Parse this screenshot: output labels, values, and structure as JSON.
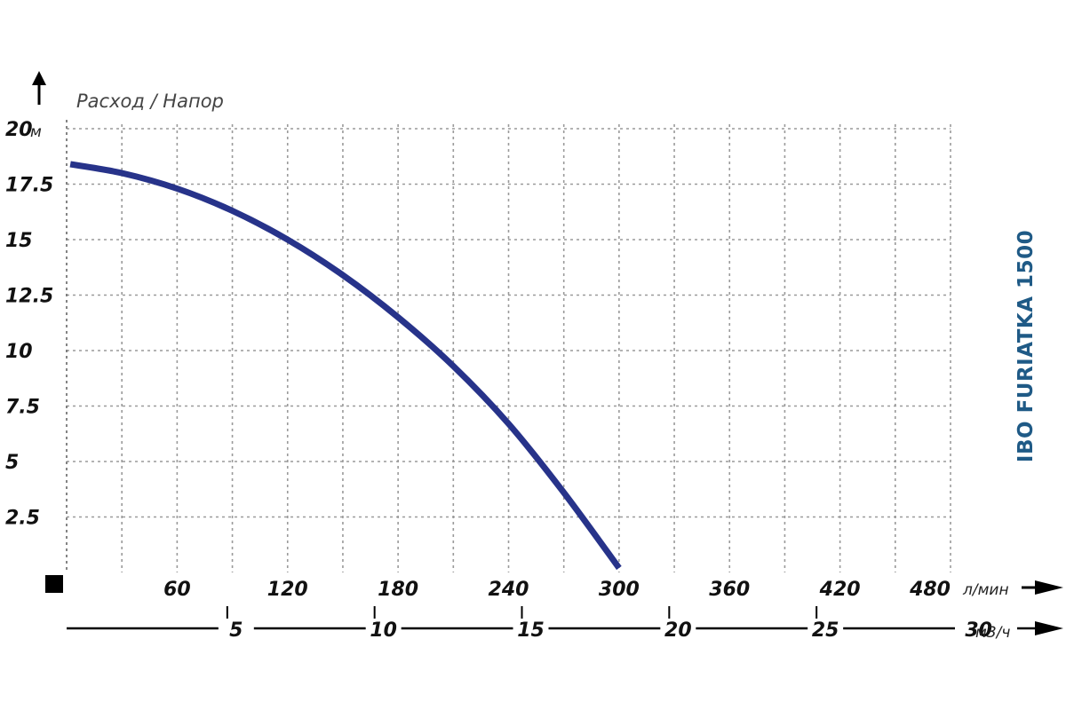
{
  "chart_data": {
    "type": "line",
    "ylabel": "Расход / Напор",
    "model_label": "IBO FURIATKA 1500",
    "y_unit": "м",
    "x_unit": "л/мин",
    "x2_unit": "м3/ч",
    "ylim": [
      0,
      20
    ],
    "xlim": [
      0,
      480
    ],
    "y_ticks": [
      {
        "value": 20,
        "label": "20"
      },
      {
        "value": 17.5,
        "label": "17.5"
      },
      {
        "value": 15,
        "label": "15"
      },
      {
        "value": 12.5,
        "label": "12.5"
      },
      {
        "value": 10,
        "label": "10"
      },
      {
        "value": 7.5,
        "label": "7.5"
      },
      {
        "value": 5,
        "label": "5"
      },
      {
        "value": 2.5,
        "label": "2.5"
      }
    ],
    "x_ticks": [
      {
        "value": 60,
        "label": "60"
      },
      {
        "value": 120,
        "label": "120"
      },
      {
        "value": 180,
        "label": "180"
      },
      {
        "value": 240,
        "label": "240"
      },
      {
        "value": 300,
        "label": "300"
      },
      {
        "value": 360,
        "label": "360"
      },
      {
        "value": 420,
        "label": "420"
      },
      {
        "value": 480,
        "label": "480"
      }
    ],
    "x2_ticks": [
      {
        "value": 5,
        "label": "5"
      },
      {
        "value": 10,
        "label": "10"
      },
      {
        "value": 15,
        "label": "15"
      },
      {
        "value": 20,
        "label": "20"
      },
      {
        "value": 25,
        "label": "25"
      },
      {
        "value": 30,
        "label": "30"
      }
    ],
    "grid": true,
    "series": [
      {
        "color": "#27338a",
        "x": [
          2,
          30,
          60,
          90,
          120,
          150,
          180,
          210,
          240,
          270,
          300
        ],
        "y": [
          18.4,
          18.0,
          17.3,
          16.3,
          15.0,
          13.4,
          11.5,
          9.3,
          6.7,
          3.6,
          0.2
        ]
      }
    ]
  }
}
